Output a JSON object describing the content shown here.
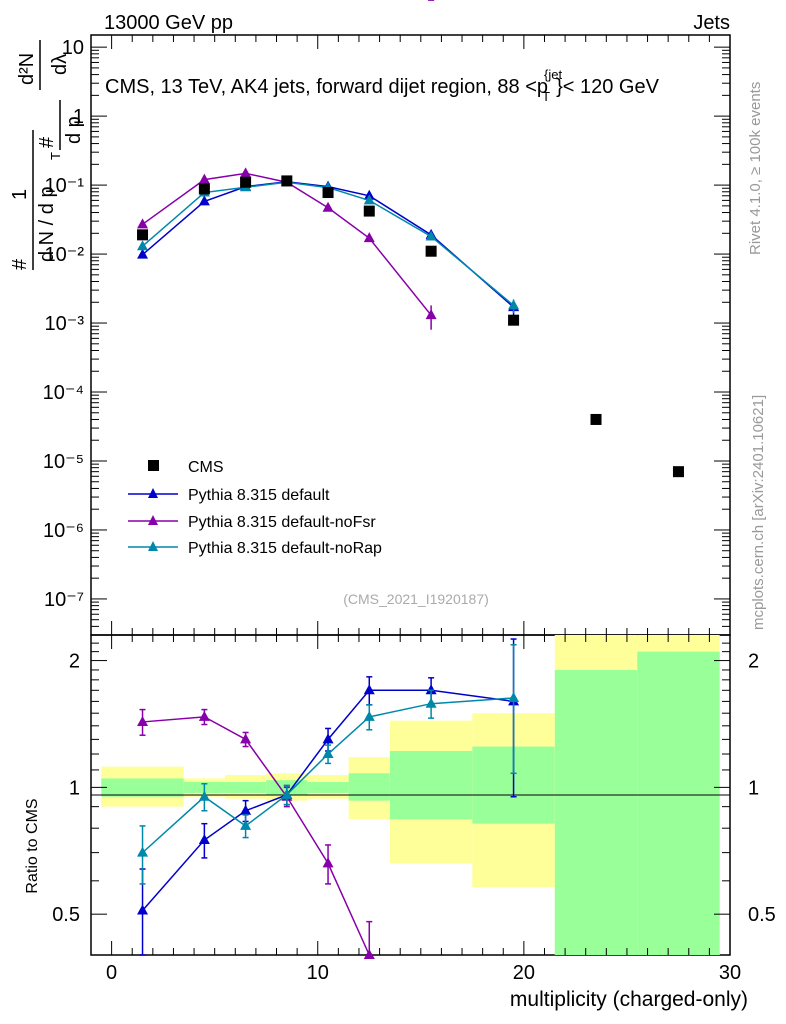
{
  "header": {
    "left": "13000 GeV pp",
    "right": "Jets"
  },
  "title": "CMS, 13 TeV, AK4 jets, forward dijet region, 88 <p",
  "title_sup": "{jet",
  "title_sub": "T",
  "title_end": "}< 120 GeV",
  "side_text": {
    "rivet": "Rivet 4.1.0, ≥ 100k events",
    "mcplots": "mcplots.cern.ch [arXiv:2401.10621]"
  },
  "watermark": "(CMS_2021_I1920187)",
  "ylabel_parts": {
    "hash": "#",
    "one": "1",
    "dN": "d N / d p",
    "T": "T",
    "hash2": "#",
    "dp": "d p",
    "d2N": "d²N",
    "dlambda": "dλ"
  },
  "ratio_ylabel": "Ratio to CMS",
  "xlabel": "multiplicity (charged-only)",
  "colors": {
    "cms": "#000000",
    "default": "#0000cc",
    "noFsr": "#8800aa",
    "noRap": "#0088aa",
    "band_outer": "#ffff99",
    "band_inner": "#99ff99"
  },
  "chart_data": {
    "type": "scatter",
    "xlim": [
      -1,
      30
    ],
    "ylim": [
      3e-08,
      15
    ],
    "ratio_ylim": [
      0.4,
      2.3
    ],
    "x_ticks": [
      "0",
      "10",
      "20",
      "30"
    ],
    "y_ticks": [
      "10",
      "1",
      "10⁻¹",
      "10⁻²",
      "10⁻³",
      "10⁻⁴",
      "10⁻⁵",
      "10⁻⁶",
      "10⁻⁷"
    ],
    "ratio_ticks": [
      "0.5",
      "1",
      "2"
    ],
    "legend": [
      "CMS",
      "Pythia 8.315 default",
      "Pythia 8.315 default-noFsr",
      "Pythia 8.315 default-noRap"
    ],
    "cms": {
      "x": [
        1.5,
        4.5,
        6.5,
        8.5,
        10.5,
        12.5,
        15.5,
        19.5,
        23.5,
        27.5
      ],
      "y": [
        0.019,
        0.088,
        0.11,
        0.115,
        0.078,
        0.042,
        0.011,
        0.0011,
        4e-05,
        7e-06
      ]
    },
    "series": [
      {
        "name": "Pythia 8.315 default",
        "key": "default",
        "x": [
          1.5,
          4.5,
          6.5,
          8.5,
          10.5,
          12.5,
          15.5,
          19.5
        ],
        "y": [
          0.0098,
          0.058,
          0.095,
          0.112,
          0.095,
          0.07,
          0.019,
          0.0017
        ],
        "err": [
          0.001,
          0.004,
          0.005,
          0.005,
          0.004,
          0.004,
          0.0015,
          0.0004
        ],
        "ratio": [
          0.51,
          0.75,
          0.88,
          0.96,
          1.3,
          1.7,
          1.7,
          1.6
        ],
        "ratio_err": [
          0.13,
          0.07,
          0.05,
          0.05,
          0.08,
          0.13,
          0.12,
          0.65
        ]
      },
      {
        "name": "Pythia 8.315 default-noFsr",
        "key": "noFsr",
        "x": [
          1.5,
          4.5,
          6.5,
          8.5,
          10.5,
          12.5,
          15.5
        ],
        "y": [
          0.027,
          0.12,
          0.148,
          0.11,
          0.047,
          0.017,
          0.0013
        ],
        "err": [
          0.002,
          0.006,
          0.006,
          0.005,
          0.003,
          0.0015,
          0.0005
        ],
        "ratio": [
          1.43,
          1.47,
          1.3,
          0.95,
          0.66,
          0.38
        ],
        "ratio_err": [
          0.1,
          0.06,
          0.05,
          0.05,
          0.07,
          0.1
        ]
      },
      {
        "name": "Pythia 8.315 default-noRap",
        "key": "noRap",
        "x": [
          1.5,
          4.5,
          6.5,
          8.5,
          10.5,
          12.5,
          15.5,
          19.5
        ],
        "y": [
          0.013,
          0.078,
          0.093,
          0.11,
          0.092,
          0.06,
          0.018,
          0.0018
        ],
        "err": [
          0.0012,
          0.004,
          0.004,
          0.005,
          0.004,
          0.004,
          0.0015,
          0.0004
        ],
        "ratio": [
          0.7,
          0.95,
          0.81,
          0.96,
          1.2,
          1.47,
          1.58,
          1.63
        ],
        "ratio_err": [
          0.11,
          0.07,
          0.05,
          0.05,
          0.06,
          0.1,
          0.12,
          0.55
        ]
      }
    ],
    "bands": [
      {
        "x0": -0.5,
        "x1": 3.5,
        "outer": [
          0.9,
          1.12
        ],
        "inner": [
          0.95,
          1.05
        ]
      },
      {
        "x0": 3.5,
        "x1": 5.5,
        "outer": [
          0.95,
          1.05
        ],
        "inner": [
          0.97,
          1.03
        ]
      },
      {
        "x0": 5.5,
        "x1": 7.5,
        "outer": [
          0.94,
          1.07
        ],
        "inner": [
          0.97,
          1.03
        ]
      },
      {
        "x0": 7.5,
        "x1": 9.5,
        "outer": [
          0.93,
          1.08
        ],
        "inner": [
          0.96,
          1.04
        ]
      },
      {
        "x0": 9.5,
        "x1": 11.5,
        "outer": [
          0.94,
          1.07
        ],
        "inner": [
          0.97,
          1.03
        ]
      },
      {
        "x0": 11.5,
        "x1": 13.5,
        "outer": [
          0.84,
          1.18
        ],
        "inner": [
          0.93,
          1.08
        ]
      },
      {
        "x0": 13.5,
        "x1": 17.5,
        "outer": [
          0.66,
          1.44
        ],
        "inner": [
          0.84,
          1.22
        ]
      },
      {
        "x0": 17.5,
        "x1": 21.5,
        "outer": [
          0.58,
          1.5
        ],
        "inner": [
          0.82,
          1.25
        ]
      },
      {
        "x0": 21.5,
        "x1": 25.5,
        "outer": [
          0.35,
          2.5
        ],
        "inner": [
          0.35,
          1.9
        ]
      },
      {
        "x0": 25.5,
        "x1": 29.5,
        "outer": [
          0.35,
          2.5
        ],
        "inner": [
          0.35,
          2.1
        ]
      }
    ]
  }
}
